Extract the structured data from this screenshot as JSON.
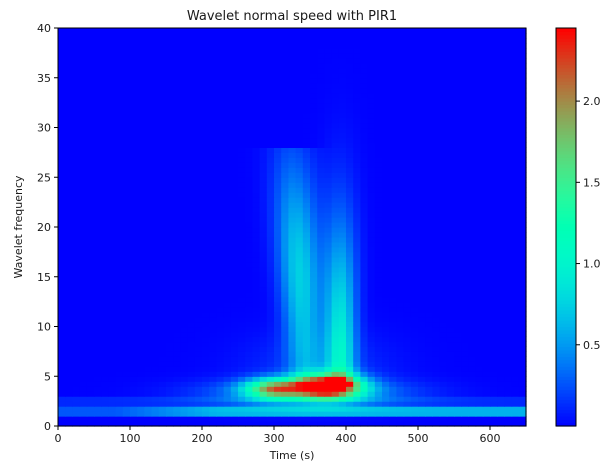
{
  "chart_data": {
    "type": "heatmap",
    "title": "Wavelet normal speed with PIR1",
    "xlabel": "Time (s)",
    "ylabel": "Wavelet frequency",
    "xlim": [
      0,
      650
    ],
    "ylim": [
      0,
      40
    ],
    "x_ticks": [
      0,
      100,
      200,
      300,
      400,
      500,
      600
    ],
    "y_ticks": [
      0,
      5,
      10,
      15,
      20,
      25,
      30,
      35,
      40
    ],
    "colormap": "rainbow",
    "colorbar": {
      "vmin": 0.0,
      "vmax": 2.45,
      "ticks": [
        0.5,
        1.0,
        1.5,
        2.0
      ],
      "tick_labels": [
        "0.5",
        "1.0",
        "1.5",
        "2.0"
      ]
    },
    "color_scale_low": "#8000ff",
    "color_scale_high": "#ff0000",
    "features": {
      "steady_band": {
        "frequency": 1.5,
        "value": 0.6
      },
      "low_band": {
        "frequency": 2.5,
        "value": 0.12
      },
      "hotspot": {
        "time": 375,
        "frequency": 4.0,
        "value": 2.4
      },
      "secondary_peak": {
        "time": 300,
        "frequency": 3.8,
        "value": 1.5
      },
      "upper_plume": {
        "time": 340,
        "frequency_range": [
          5,
          28
        ],
        "value": 0.75
      },
      "right_ridge": {
        "time": 395,
        "frequency_range": [
          5,
          38
        ],
        "value": 0.9
      }
    }
  }
}
